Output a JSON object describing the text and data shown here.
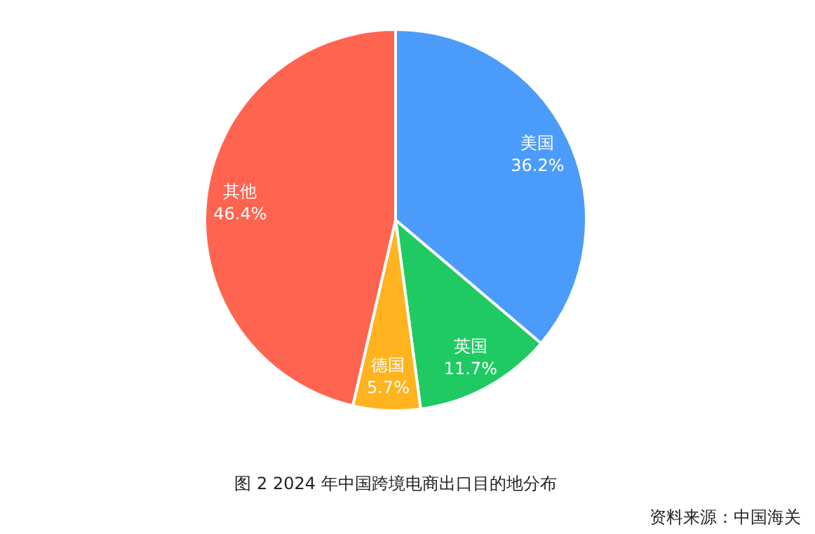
{
  "chart_data": {
    "type": "pie",
    "title": "图 2 2024 年中国跨境电商出口目的地分布",
    "categories": [
      "美国",
      "英国",
      "德国",
      "其他"
    ],
    "values": [
      36.2,
      11.7,
      5.7,
      46.4
    ],
    "value_labels": [
      "36.2%",
      "11.7%",
      "5.7%",
      "46.4%"
    ],
    "colors": [
      "#4b9cfa",
      "#1fca63",
      "#ffb31f",
      "#ff6450"
    ],
    "annotations": [
      "资料来源：中国海关"
    ]
  }
}
